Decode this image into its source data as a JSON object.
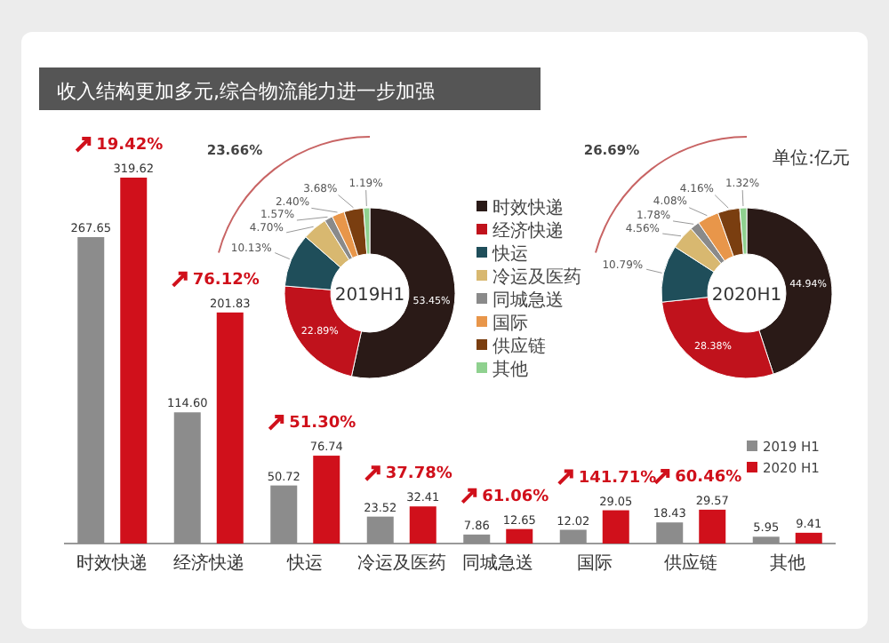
{
  "chart_data": [
    {
      "type": "bar",
      "title": "收入结构更加多元,综合物流能力进一步加强",
      "categories": [
        "时效快递",
        "经济快递",
        "快运",
        "冷运及医药",
        "同城急送",
        "国际",
        "供应链",
        "其他"
      ],
      "series": [
        {
          "name": "2019 H1",
          "color": "#8c8c8c",
          "values": [
            267.65,
            114.6,
            50.72,
            23.52,
            7.86,
            12.02,
            18.43,
            5.95
          ],
          "value_labels": [
            "267.65",
            "114.60",
            "50.72",
            "23.52",
            "7.86",
            "12.02",
            "18.43",
            "5.95"
          ]
        },
        {
          "name": "2020 H1",
          "color": "#d0101b",
          "values": [
            319.62,
            201.83,
            76.74,
            32.41,
            12.65,
            29.05,
            29.57,
            9.41
          ],
          "value_labels": [
            "319.62",
            "201.83",
            "76.74",
            "32.41",
            "12.65",
            "29.05",
            "29.57",
            "9.41"
          ]
        }
      ],
      "legend": "right",
      "annotations": [
        "单位:亿元",
        {
          "text": "19.42%",
          "x": "时效快递",
          "y": 319.62
        },
        {
          "text": "76.12%",
          "x": "经济快递",
          "y": 201.83
        },
        {
          "text": "51.30%",
          "x": "快运",
          "y": 76.74
        },
        {
          "text": "37.78%",
          "x": "冷运及医药",
          "y": 32.41
        },
        {
          "text": "61.06%",
          "x": "同城急送",
          "y": 12.65
        },
        {
          "text": "141.71%",
          "x": "国际",
          "y": 29.05
        },
        {
          "text": "60.46%",
          "x": "供应链",
          "y": 29.57
        }
      ]
    },
    {
      "type": "donut",
      "title": "2019H1",
      "categories": [
        "时效快递",
        "经济快递",
        "快运",
        "冷运及医药",
        "同城急送",
        "国际",
        "供应链",
        "其他"
      ],
      "values": [
        53.45,
        22.89,
        10.13,
        4.7,
        1.57,
        2.4,
        3.68,
        1.19
      ],
      "value_labels": [
        "53.45%",
        "22.89%",
        "10.13%",
        "4.70%",
        "1.57%",
        "2.40%",
        "3.68%",
        "1.19%"
      ],
      "colors": [
        "#2a1a17",
        "#c0121c",
        "#1f4e5a",
        "#d8b870",
        "#8a8a8a",
        "#e8964a",
        "#7a3e10",
        "#8fd18f"
      ],
      "legend": "right",
      "annotations": [
        "23.66%"
      ]
    },
    {
      "type": "donut",
      "title": "2020H1",
      "categories": [
        null,
        null,
        null,
        null,
        null,
        null,
        null,
        null
      ],
      "values": [
        44.94,
        28.38,
        10.79,
        4.56,
        1.78,
        4.08,
        4.16,
        1.32
      ],
      "value_labels": [
        "44.94%",
        "28.38%",
        "10.79%",
        "4.56%",
        "1.78%",
        "4.08%",
        "4.16%",
        "1.32%"
      ],
      "colors": [
        "#2a1a17",
        "#c0121c",
        "#1f4e5a",
        "#d8b870",
        "#8a8a8a",
        "#e8964a",
        "#7a3e10",
        "#8fd18f"
      ],
      "annotations": [
        "26.69%"
      ]
    }
  ]
}
